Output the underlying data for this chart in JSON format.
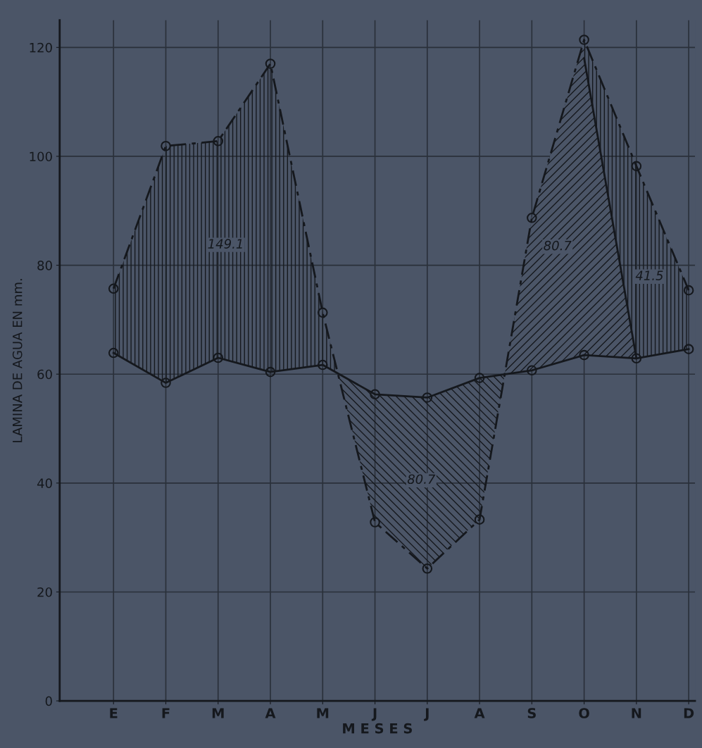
{
  "chart_data": {
    "type": "line",
    "ylabel": "LAMINA DE AGUA EN mm.",
    "xlabel": "M E S E S",
    "categories": [
      "E",
      "F",
      "M",
      "A",
      "M",
      "J",
      "J",
      "A",
      "S",
      "O",
      "N",
      "D"
    ],
    "series": [
      {
        "color": "#15181d",
        "marker": "circle",
        "line_style": "dashed",
        "values": [
          75.7,
          101.9,
          102.8,
          117,
          71.3,
          32.8,
          24.3,
          33.3,
          88.7,
          121.4,
          98.2,
          75.4
        ]
      },
      {
        "color": "#15181d",
        "marker": "circle",
        "line_style": "solid",
        "values": [
          63.9,
          58.4,
          63,
          60.4,
          61.7,
          56.3,
          55.7,
          59.3,
          60.7,
          63.5,
          62.9,
          64.6
        ]
      },
      {
        "color": "#15181d",
        "marker": "none",
        "line_style": "solid",
        "values": [
          null,
          null,
          null,
          null,
          null,
          null,
          null,
          null,
          null,
          118,
          62.9,
          null
        ]
      }
    ],
    "annotations": [
      "149.1",
      "80.7",
      "80.7",
      "41.5"
    ],
    "ylim": [
      0,
      125
    ],
    "yticks": [
      0,
      20,
      40,
      60,
      80,
      100,
      120
    ],
    "grid": true
  }
}
